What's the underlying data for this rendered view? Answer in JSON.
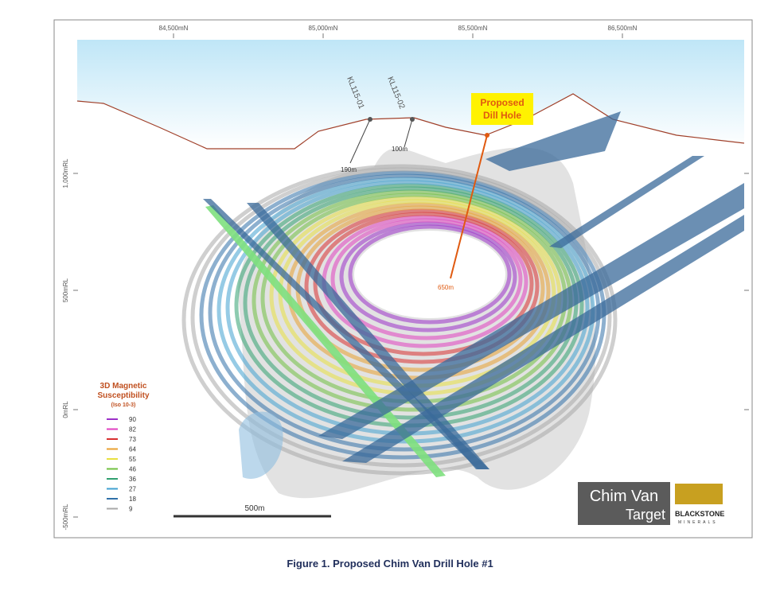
{
  "axes": {
    "top": [
      "84,500mN",
      "85,000mN",
      "85,500mN",
      "86,500mN"
    ],
    "left": [
      "1,000mRL",
      "500mRL",
      "0mRL",
      "-500mRL"
    ]
  },
  "holes": [
    {
      "name": "KL115-01",
      "depth": "190m"
    },
    {
      "name": "KL115-02",
      "depth": "100m"
    }
  ],
  "proposed": {
    "line1": "Proposed",
    "line2": "Dill Hole",
    "depth": "650m"
  },
  "legend": {
    "title": [
      "3D Magnetic",
      "Susceptibility",
      "(Iso 10-3)"
    ],
    "items": [
      {
        "label": "90",
        "color": "#9b30c8"
      },
      {
        "label": "82",
        "color": "#e040c0"
      },
      {
        "label": "73",
        "color": "#d83030"
      },
      {
        "label": "64",
        "color": "#e8a030"
      },
      {
        "label": "55",
        "color": "#e8e040"
      },
      {
        "label": "46",
        "color": "#70c040"
      },
      {
        "label": "36",
        "color": "#30a070"
      },
      {
        "label": "27",
        "color": "#40a0d0"
      },
      {
        "label": "18",
        "color": "#3070a8"
      },
      {
        "label": "9",
        "color": "#a8a8a8"
      }
    ]
  },
  "scale_bar": "500m",
  "logo": {
    "line1": "Chim Van",
    "line2": "Target",
    "brand": "BLACKSTONE",
    "sub": "MINERALS"
  },
  "caption": "Figure 1.  Proposed Chim Van Drill Hole #1"
}
